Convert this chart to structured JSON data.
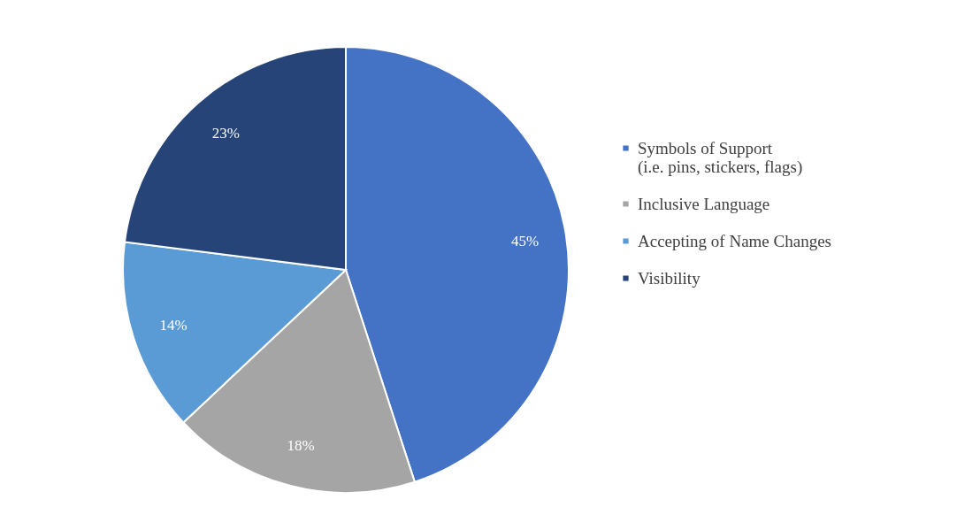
{
  "chart_data": {
    "type": "pie",
    "categories": [
      "Symbols of Support\n(i.e. pins, stickers, flags)",
      "Inclusive Language",
      "Accepting of Name Changes",
      "Visibility"
    ],
    "values": [
      45,
      18,
      14,
      23
    ],
    "colors": [
      "#4472c4",
      "#a5a5a5",
      "#5b9bd5",
      "#264478"
    ],
    "value_labels": [
      "45%",
      "18%",
      "14%",
      "23%"
    ],
    "legend": "right"
  }
}
